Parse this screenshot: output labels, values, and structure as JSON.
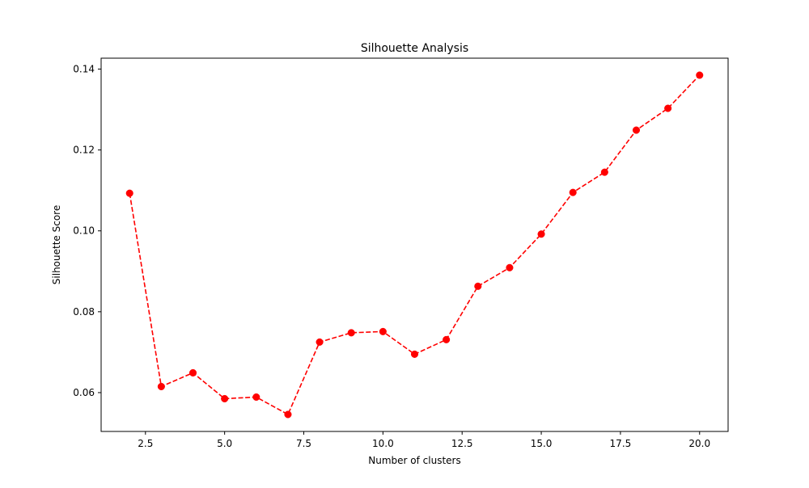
{
  "chart_data": {
    "type": "line",
    "title": "Silhouette Analysis",
    "xlabel": "Number of clusters",
    "ylabel": "Silhouette Score",
    "x": [
      2,
      3,
      4,
      5,
      6,
      7,
      8,
      9,
      10,
      11,
      12,
      13,
      14,
      15,
      16,
      17,
      18,
      19,
      20
    ],
    "y": [
      0.1093,
      0.0615,
      0.0649,
      0.0585,
      0.0589,
      0.0546,
      0.0725,
      0.0748,
      0.0751,
      0.0695,
      0.0731,
      0.0863,
      0.0909,
      0.0992,
      0.1095,
      0.1145,
      0.1249,
      0.1303,
      0.1385
    ],
    "xlim": [
      1.1,
      20.9
    ],
    "ylim": [
      0.0504,
      0.1427
    ],
    "xticks": [
      2.5,
      5.0,
      7.5,
      10.0,
      12.5,
      15.0,
      17.5,
      20.0
    ],
    "xtick_labels": [
      "2.5",
      "5.0",
      "7.5",
      "10.0",
      "12.5",
      "15.0",
      "17.5",
      "20.0"
    ],
    "yticks": [
      0.06,
      0.08,
      0.1,
      0.12,
      0.14
    ],
    "ytick_labels": [
      "0.06",
      "0.08",
      "0.10",
      "0.12",
      "0.14"
    ],
    "grid": false,
    "line_style": "dashed",
    "marker": "circle",
    "color": "#ff0000"
  }
}
